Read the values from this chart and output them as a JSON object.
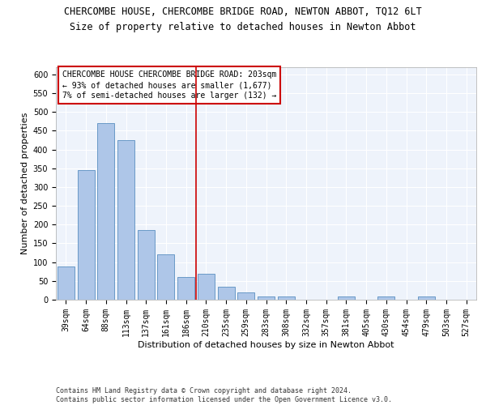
{
  "title1": "CHERCOMBE HOUSE, CHERCOMBE BRIDGE ROAD, NEWTON ABBOT, TQ12 6LT",
  "title2": "Size of property relative to detached houses in Newton Abbot",
  "xlabel": "Distribution of detached houses by size in Newton Abbot",
  "ylabel": "Number of detached properties",
  "categories": [
    "39sqm",
    "64sqm",
    "88sqm",
    "113sqm",
    "137sqm",
    "161sqm",
    "186sqm",
    "210sqm",
    "235sqm",
    "259sqm",
    "283sqm",
    "308sqm",
    "332sqm",
    "357sqm",
    "381sqm",
    "405sqm",
    "430sqm",
    "454sqm",
    "479sqm",
    "503sqm",
    "527sqm"
  ],
  "values": [
    88,
    345,
    470,
    425,
    185,
    120,
    60,
    70,
    35,
    20,
    8,
    8,
    0,
    0,
    8,
    0,
    8,
    0,
    8,
    0,
    0
  ],
  "bar_color": "#aec6e8",
  "bar_edge_color": "#5a8fc0",
  "vline_color": "#cc0000",
  "annotation_text": "CHERCOMBE HOUSE CHERCOMBE BRIDGE ROAD: 203sqm\n← 93% of detached houses are smaller (1,677)\n7% of semi-detached houses are larger (132) →",
  "annotation_box_color": "#ffffff",
  "annotation_border_color": "#cc0000",
  "ylim": [
    0,
    620
  ],
  "yticks": [
    0,
    50,
    100,
    150,
    200,
    250,
    300,
    350,
    400,
    450,
    500,
    550,
    600
  ],
  "bg_color": "#eef3fb",
  "grid_color": "#ffffff",
  "footer": "Contains HM Land Registry data © Crown copyright and database right 2024.\nContains public sector information licensed under the Open Government Licence v3.0.",
  "title1_fontsize": 8.5,
  "title2_fontsize": 8.5,
  "xlabel_fontsize": 8,
  "ylabel_fontsize": 8,
  "tick_fontsize": 7,
  "annotation_fontsize": 7,
  "footer_fontsize": 6
}
